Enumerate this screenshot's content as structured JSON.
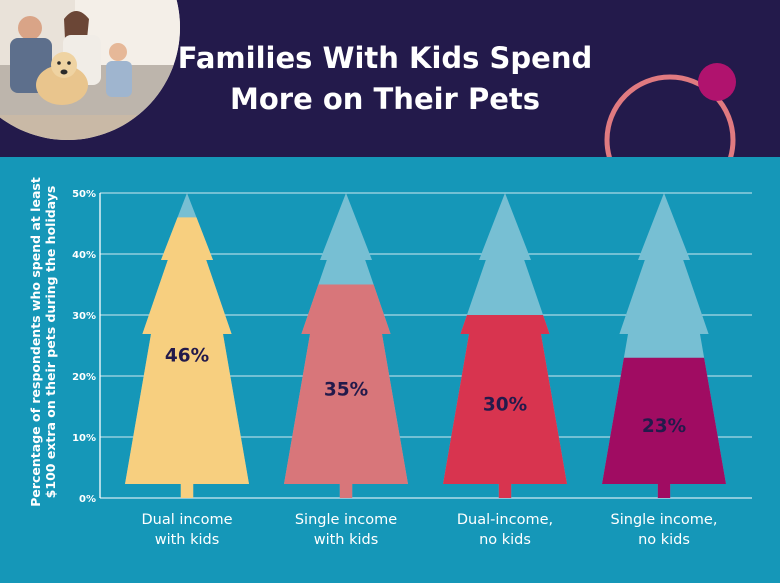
{
  "header": {
    "title_line1": "Families With Kids Spend",
    "title_line2": "More on Their Pets",
    "background": "#231a4b",
    "ring_color": "#e07a80",
    "dot_color": "#b0136e"
  },
  "photo": {
    "name": "family-with-dog-photo"
  },
  "chart_data": {
    "type": "bar",
    "title": "Families With Kids Spend More on Their Pets",
    "ylabel_line1": "Percentage of respondents who spend at least",
    "ylabel_line2": "$100 extra on their pets during the holidays",
    "ylim": [
      0,
      50
    ],
    "yticks": [
      "0%",
      "10%",
      "20%",
      "30%",
      "40%",
      "50%"
    ],
    "grid": true,
    "categories": [
      {
        "line1": "Dual income",
        "line2": "with kids"
      },
      {
        "line1": "Single income",
        "line2": "with kids"
      },
      {
        "line1": "Dual-income,",
        "line2": "no kids"
      },
      {
        "line1": "Single income,",
        "line2": "no kids"
      }
    ],
    "values": [
      46,
      35,
      30,
      23
    ],
    "value_labels": [
      "46%",
      "35%",
      "30%",
      "23%"
    ],
    "colors": [
      "#f7cf7f",
      "#d8767a",
      "#d8344f",
      "#a00c62"
    ],
    "remainder_color": "#77bfd3",
    "background": "#1597b8"
  }
}
